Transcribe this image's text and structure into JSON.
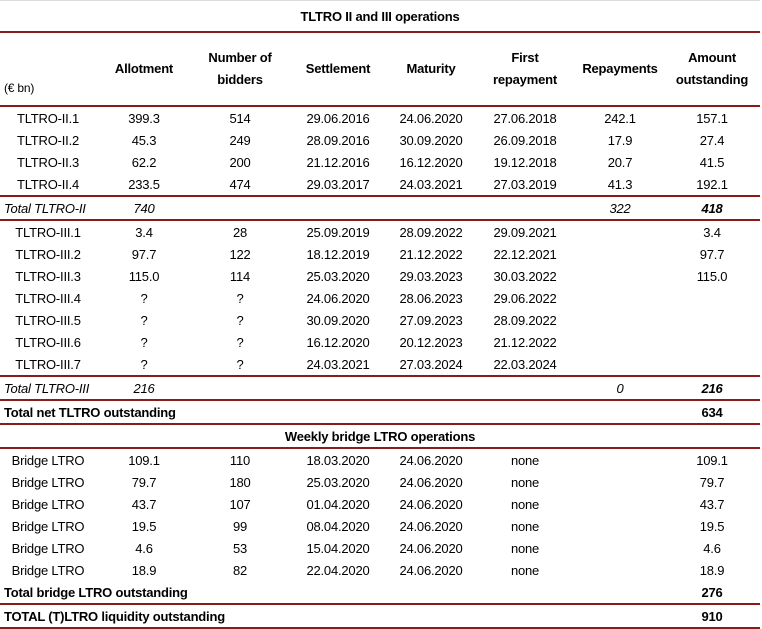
{
  "title": "TLTRO II and III operations",
  "headers": {
    "unit": "(€ bn)",
    "allotment": "Allotment",
    "bidders_1": "Number of",
    "bidders_2": "bidders",
    "settlement": "Settlement",
    "maturity": "Maturity",
    "first_1": "First",
    "first_2": "repayment",
    "repayments": "Repayments",
    "amount_1": "Amount",
    "amount_2": "outstanding"
  },
  "tltro2_rows": [
    {
      "name": "TLTRO-II.1",
      "allotment": "399.3",
      "bidders": "514",
      "settlement": "29.06.2016",
      "maturity": "24.06.2020",
      "first": "27.06.2018",
      "repayments": "242.1",
      "outstanding": "157.1"
    },
    {
      "name": "TLTRO-II.2",
      "allotment": "45.3",
      "bidders": "249",
      "settlement": "28.09.2016",
      "maturity": "30.09.2020",
      "first": "26.09.2018",
      "repayments": "17.9",
      "outstanding": "27.4"
    },
    {
      "name": "TLTRO-II.3",
      "allotment": "62.2",
      "bidders": "200",
      "settlement": "21.12.2016",
      "maturity": "16.12.2020",
      "first": "19.12.2018",
      "repayments": "20.7",
      "outstanding": "41.5"
    },
    {
      "name": "TLTRO-II.4",
      "allotment": "233.5",
      "bidders": "474",
      "settlement": "29.03.2017",
      "maturity": "24.03.2021",
      "first": "27.03.2019",
      "repayments": "41.3",
      "outstanding": "192.1"
    }
  ],
  "tltro2_total": {
    "label": "Total TLTRO-II",
    "allotment": "740",
    "repayments": "322",
    "outstanding": "418"
  },
  "tltro3_rows": [
    {
      "name": "TLTRO-III.1",
      "allotment": "3.4",
      "bidders": "28",
      "settlement": "25.09.2019",
      "maturity": "28.09.2022",
      "first": "29.09.2021",
      "repayments": "",
      "outstanding": "3.4"
    },
    {
      "name": "TLTRO-III.2",
      "allotment": "97.7",
      "bidders": "122",
      "settlement": "18.12.2019",
      "maturity": "21.12.2022",
      "first": "22.12.2021",
      "repayments": "",
      "outstanding": "97.7"
    },
    {
      "name": "TLTRO-III.3",
      "allotment": "115.0",
      "bidders": "114",
      "settlement": "25.03.2020",
      "maturity": "29.03.2023",
      "first": "30.03.2022",
      "repayments": "",
      "outstanding": "115.0"
    },
    {
      "name": "TLTRO-III.4",
      "allotment": "?",
      "bidders": "?",
      "settlement": "24.06.2020",
      "maturity": "28.06.2023",
      "first": "29.06.2022",
      "repayments": "",
      "outstanding": ""
    },
    {
      "name": "TLTRO-III.5",
      "allotment": "?",
      "bidders": "?",
      "settlement": "30.09.2020",
      "maturity": "27.09.2023",
      "first": "28.09.2022",
      "repayments": "",
      "outstanding": ""
    },
    {
      "name": "TLTRO-III.6",
      "allotment": "?",
      "bidders": "?",
      "settlement": "16.12.2020",
      "maturity": "20.12.2023",
      "first": "21.12.2022",
      "repayments": "",
      "outstanding": ""
    },
    {
      "name": "TLTRO-III.7",
      "allotment": "?",
      "bidders": "?",
      "settlement": "24.03.2021",
      "maturity": "27.03.2024",
      "first": "22.03.2024",
      "repayments": "",
      "outstanding": ""
    }
  ],
  "tltro3_total": {
    "label": "Total TLTRO-III",
    "allotment": "216",
    "repayments": "0",
    "outstanding": "216"
  },
  "net_total": {
    "label": "Total net TLTRO outstanding",
    "outstanding": "634"
  },
  "bridge_title": "Weekly bridge LTRO operations",
  "bridge_rows": [
    {
      "name": "Bridge LTRO",
      "allotment": "109.1",
      "bidders": "110",
      "settlement": "18.03.2020",
      "maturity": "24.06.2020",
      "first": "none",
      "repayments": "",
      "outstanding": "109.1"
    },
    {
      "name": "Bridge LTRO",
      "allotment": "79.7",
      "bidders": "180",
      "settlement": "25.03.2020",
      "maturity": "24.06.2020",
      "first": "none",
      "repayments": "",
      "outstanding": "79.7"
    },
    {
      "name": "Bridge LTRO",
      "allotment": "43.7",
      "bidders": "107",
      "settlement": "01.04.2020",
      "maturity": "24.06.2020",
      "first": "none",
      "repayments": "",
      "outstanding": "43.7"
    },
    {
      "name": "Bridge LTRO",
      "allotment": "19.5",
      "bidders": "99",
      "settlement": "08.04.2020",
      "maturity": "24.06.2020",
      "first": "none",
      "repayments": "",
      "outstanding": "19.5"
    },
    {
      "name": "Bridge LTRO",
      "allotment": "4.6",
      "bidders": "53",
      "settlement": "15.04.2020",
      "maturity": "24.06.2020",
      "first": "none",
      "repayments": "",
      "outstanding": "4.6"
    },
    {
      "name": "Bridge LTRO",
      "allotment": "18.9",
      "bidders": "82",
      "settlement": "22.04.2020",
      "maturity": "24.06.2020",
      "first": "none",
      "repayments": "",
      "outstanding": "18.9"
    }
  ],
  "bridge_total": {
    "label": "Total bridge LTRO outstanding",
    "outstanding": "276"
  },
  "grand_total": {
    "label": "TOTAL (T)LTRO liquidity outstanding",
    "outstanding": "910"
  }
}
